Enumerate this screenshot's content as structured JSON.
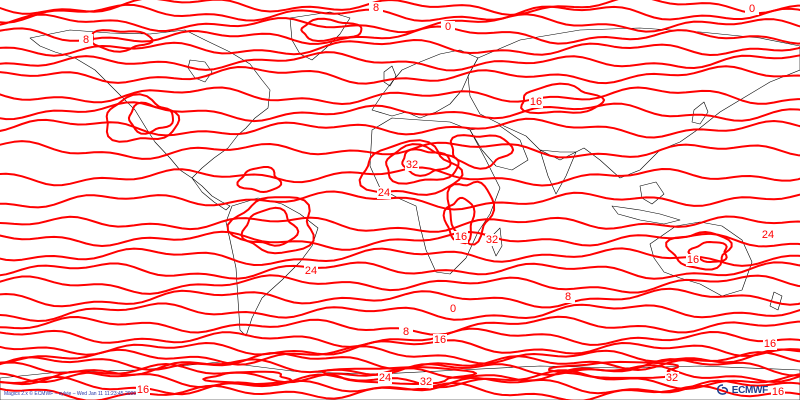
{
  "map": {
    "contour_color": "#ff0000",
    "coast_color": "#000000",
    "contour_labels": [
      {
        "text": "8"
      },
      {
        "text": "0"
      },
      {
        "text": "0"
      },
      {
        "text": "8"
      },
      {
        "text": "16"
      },
      {
        "text": "32"
      },
      {
        "text": "24"
      },
      {
        "text": "16"
      },
      {
        "text": "32"
      },
      {
        "text": "24"
      },
      {
        "text": "16"
      },
      {
        "text": "24"
      },
      {
        "text": "8"
      },
      {
        "text": "0"
      },
      {
        "text": "8"
      },
      {
        "text": "16"
      },
      {
        "text": "16"
      },
      {
        "text": "24"
      },
      {
        "text": "32"
      },
      {
        "text": "32"
      },
      {
        "text": "16"
      },
      {
        "text": "16"
      }
    ]
  },
  "credit_text": "Magics 2.x © ECMWF – sylvie – Wed Jan 11 11:23:45 2006",
  "logo": {
    "text": "ECMWF",
    "icon": "ecmwf-swirl-icon",
    "color": "#1f3f8f"
  }
}
